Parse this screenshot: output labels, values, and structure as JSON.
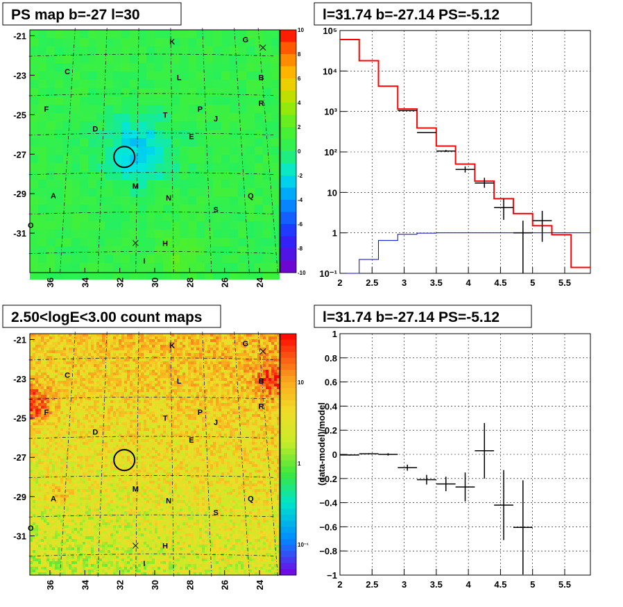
{
  "panels": {
    "map1_title": "PS map b=-27 l=30",
    "spec_title": "l=31.74 b=-27.14 PS=-5.12",
    "map2_title": "2.50<logE<3.00 count maps",
    "resid_title": "l=31.74 b=-27.14 PS=-5.12"
  },
  "maps": {
    "y_ticks": [
      "-21",
      "-23",
      "-25",
      "-27",
      "-29",
      "-31"
    ],
    "x_ticks": [
      "36",
      "34",
      "32",
      "30",
      "28",
      "26",
      "24"
    ],
    "colorbar1_ticks": [
      "10",
      "8",
      "6",
      "4",
      "2",
      "0",
      "-2",
      "-4",
      "-6",
      "-8",
      "-10"
    ],
    "colorbar2_ticks": [
      "10",
      "1",
      "10⁻¹"
    ],
    "labels": [
      {
        "t": "K",
        "l": 29.0,
        "b": -21.3
      },
      {
        "t": "G",
        "l": 24.8,
        "b": -21.2
      },
      {
        "t": "C",
        "l": 35.0,
        "b": -22.8
      },
      {
        "t": "L",
        "l": 28.6,
        "b": -23.1
      },
      {
        "t": "B",
        "l": 23.9,
        "b": -23.1
      },
      {
        "t": "F",
        "l": 36.2,
        "b": -24.7
      },
      {
        "t": "R",
        "l": 23.9,
        "b": -24.4
      },
      {
        "t": "T",
        "l": 29.4,
        "b": -25.0
      },
      {
        "t": "P",
        "l": 27.4,
        "b": -24.7
      },
      {
        "t": "J",
        "l": 26.5,
        "b": -25.2
      },
      {
        "t": "D",
        "l": 33.4,
        "b": -25.7
      },
      {
        "t": "E",
        "l": 27.9,
        "b": -26.1
      },
      {
        "t": "M",
        "l": 31.1,
        "b": -28.6
      },
      {
        "t": "A",
        "l": 35.8,
        "b": -29.1
      },
      {
        "t": "Q",
        "l": 24.5,
        "b": -29.1
      },
      {
        "t": "N",
        "l": 29.2,
        "b": -29.2
      },
      {
        "t": "S",
        "l": 26.5,
        "b": -29.8
      },
      {
        "t": "O",
        "l": 37.1,
        "b": -30.6
      },
      {
        "t": "H",
        "l": 29.4,
        "b": -31.5
      },
      {
        "t": "I",
        "l": 30.6,
        "b": -32.4
      }
    ],
    "crosses": [
      {
        "l": 23.8,
        "b": -21.6
      },
      {
        "l": 31.1,
        "b": -31.5
      }
    ],
    "circle": {
      "l": 31.74,
      "b": -27.14
    }
  },
  "chart_data": [
    {
      "type": "step",
      "title": "l=31.74 b=-27.14 PS=-5.12",
      "xlabel": "",
      "ylabel": "",
      "xlim": [
        2,
        5.9
      ],
      "ylim": [
        0.1,
        100000
      ],
      "log_y": true,
      "grid": true,
      "x_ticks": [
        "2",
        "2.5",
        "3",
        "3.5",
        "4",
        "4.5",
        "5",
        "5.5"
      ],
      "y_ticks": [
        "10⁻¹",
        "1",
        "10",
        "10²",
        "10³",
        "10⁴",
        "10⁵"
      ],
      "bin_edges": [
        2.0,
        2.3,
        2.6,
        2.9,
        3.2,
        3.5,
        3.8,
        4.1,
        4.4,
        4.7,
        5.0,
        5.3,
        5.6,
        5.9
      ],
      "series": [
        {
          "color": "#ff0000",
          "values": [
            60000,
            18000,
            4200,
            1150,
            390,
            140,
            50,
            19,
            7,
            3,
            1.5,
            0.9,
            0.14
          ]
        },
        {
          "color": "#0000cc",
          "values": [
            0.1,
            0.22,
            0.65,
            0.92,
            0.98,
            1.0,
            1.0,
            1.0,
            1.0,
            1.0,
            1.0,
            1.0,
            1.0
          ]
        }
      ],
      "points": [
        {
          "x": 3.05,
          "y": 1050,
          "xerr": 0.15,
          "ylo": 1050,
          "yhi": 1050
        },
        {
          "x": 3.35,
          "y": 300,
          "xerr": 0.15,
          "ylo": 300,
          "yhi": 300
        },
        {
          "x": 3.65,
          "y": 105,
          "xerr": 0.15,
          "ylo": 100,
          "yhi": 112
        },
        {
          "x": 3.95,
          "y": 37,
          "xerr": 0.15,
          "ylo": 31,
          "yhi": 44
        },
        {
          "x": 4.25,
          "y": 17,
          "xerr": 0.15,
          "ylo": 13,
          "yhi": 23
        },
        {
          "x": 4.55,
          "y": 4.2,
          "xerr": 0.15,
          "ylo": 2.1,
          "yhi": 7
        },
        {
          "x": 4.85,
          "y": 1.0,
          "xerr": 0.15,
          "ylo": 0.1,
          "yhi": 2.0
        },
        {
          "x": 5.15,
          "y": 2.0,
          "xerr": 0.15,
          "ylo": 0.6,
          "yhi": 3.5
        }
      ]
    },
    {
      "type": "scatter",
      "title": "l=31.74 b=-27.14 PS=-5.12",
      "xlabel": "",
      "ylabel": "(data-model)/model",
      "xlim": [
        2,
        5.9
      ],
      "ylim": [
        -1,
        1
      ],
      "grid": true,
      "x_ticks": [
        "2",
        "2.5",
        "3",
        "3.5",
        "4",
        "4.5",
        "5",
        "5.5"
      ],
      "y_ticks": [
        "1",
        "0.8",
        "0.6",
        "0.4",
        "0.2",
        "0",
        "−0.2",
        "−0.4",
        "−0.6",
        "−0.8",
        "−1"
      ],
      "points": [
        {
          "x": 2.15,
          "y": -0.005,
          "xerr": 0.15,
          "yerr": 0.005
        },
        {
          "x": 2.45,
          "y": 0.005,
          "xerr": 0.15,
          "yerr": 0.005
        },
        {
          "x": 2.75,
          "y": 0.0,
          "xerr": 0.15,
          "yerr": 0.01
        },
        {
          "x": 3.05,
          "y": -0.11,
          "xerr": 0.15,
          "yerr": 0.025
        },
        {
          "x": 3.35,
          "y": -0.21,
          "xerr": 0.15,
          "yerr": 0.04
        },
        {
          "x": 3.65,
          "y": -0.245,
          "xerr": 0.15,
          "yerr": 0.06
        },
        {
          "x": 3.95,
          "y": -0.27,
          "xerr": 0.15,
          "yerr": 0.12
        },
        {
          "x": 4.25,
          "y": 0.03,
          "xerr": 0.15,
          "yerr": 0.23
        },
        {
          "x": 4.55,
          "y": -0.42,
          "xerr": 0.15,
          "yerr": 0.29
        },
        {
          "x": 4.85,
          "y": -0.605,
          "xerr": 0.15,
          "yerr": 0.39
        }
      ]
    }
  ]
}
